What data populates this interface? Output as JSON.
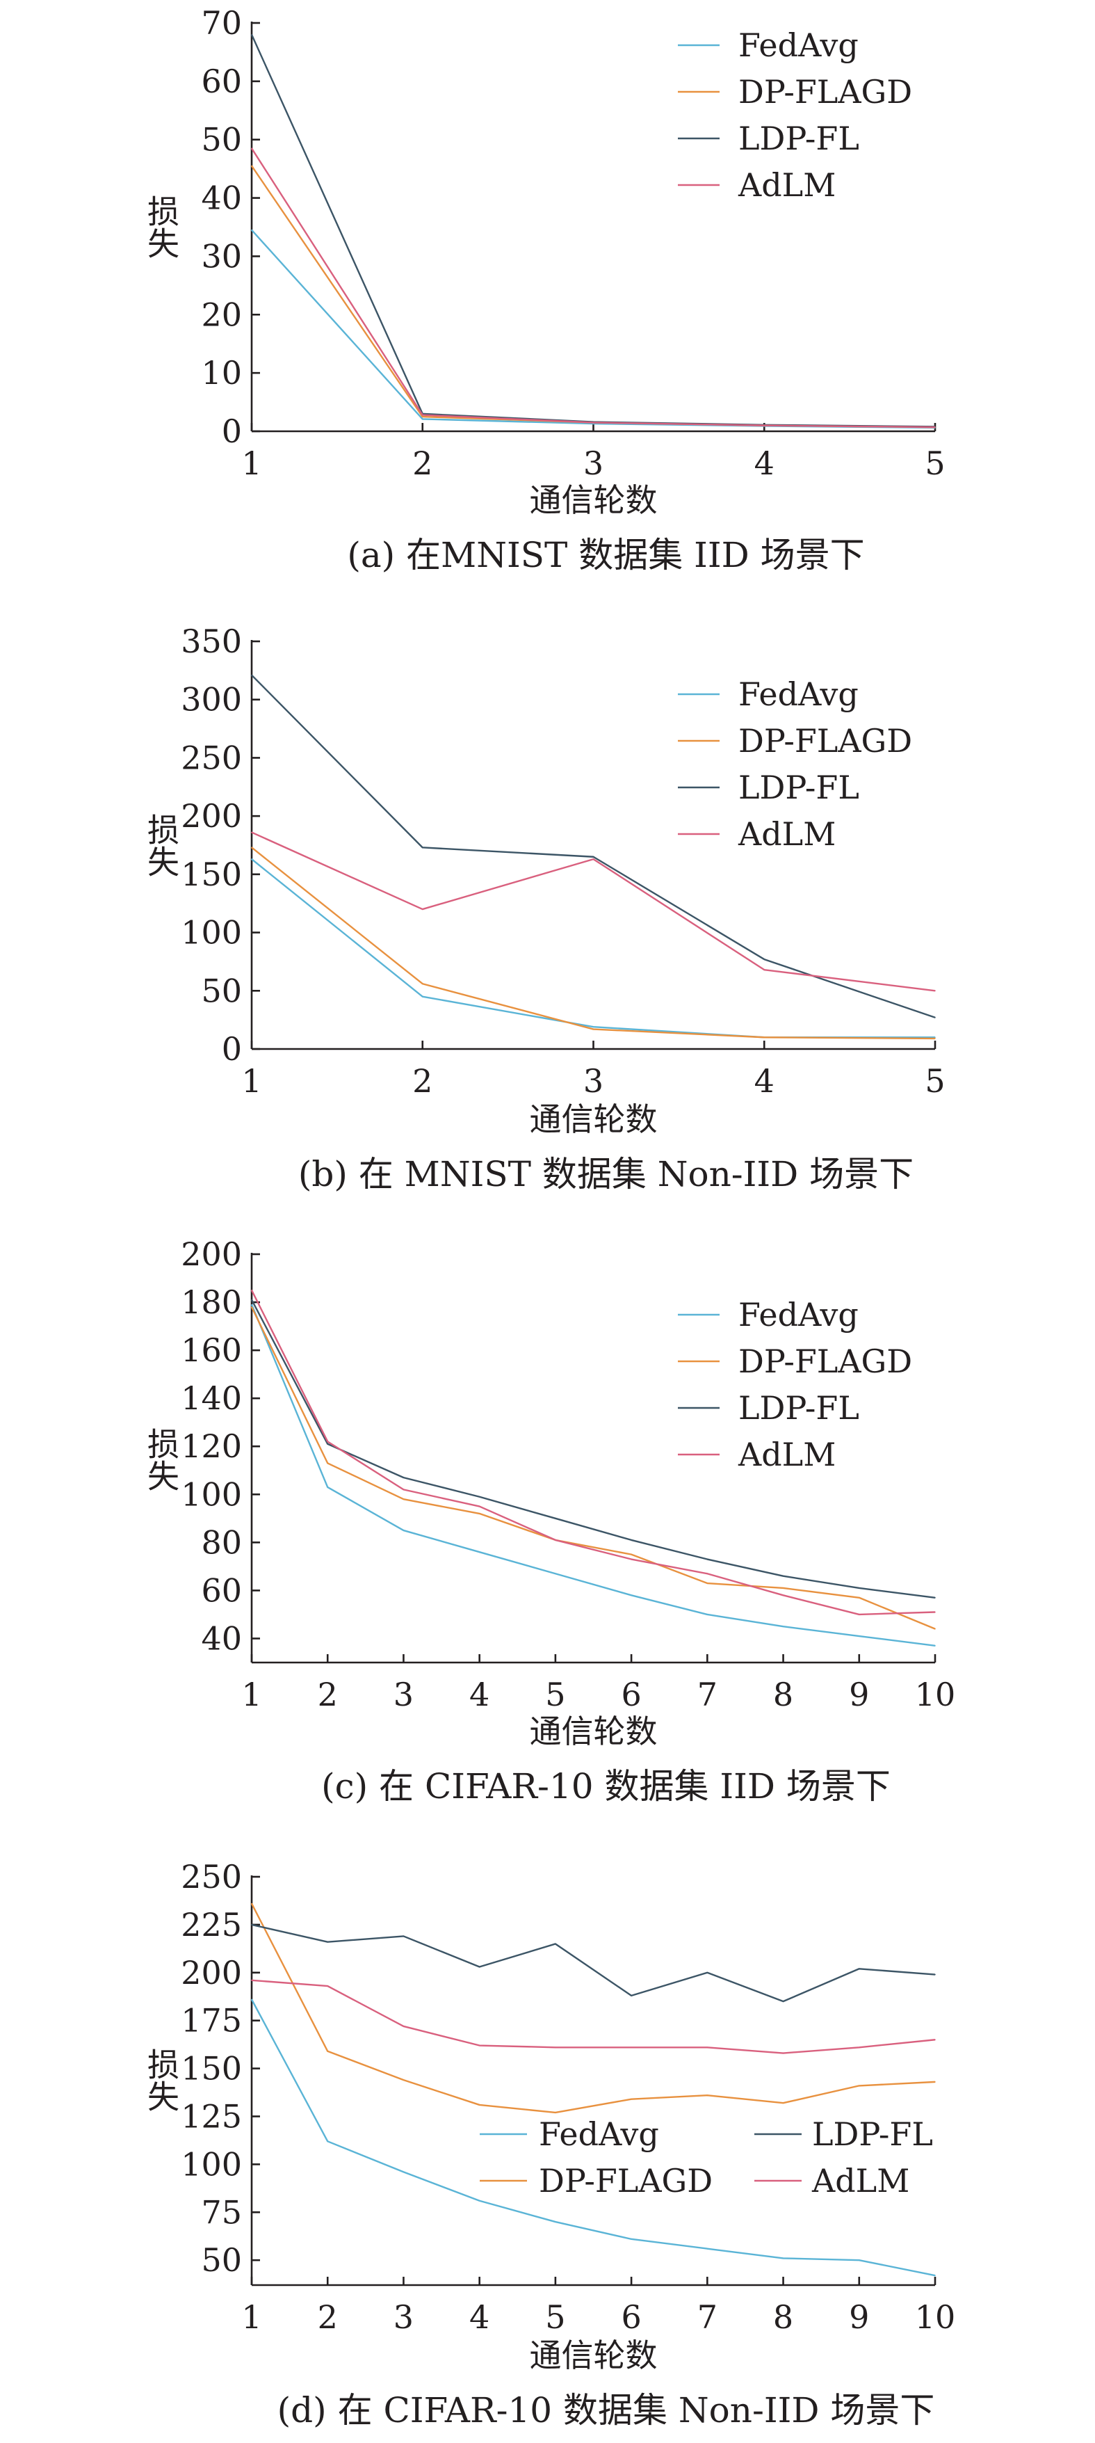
{
  "chart_data": [
    {
      "type": "line",
      "caption": "(a) 在MNIST 数据集 IID 场景下",
      "xlabel": "通信轮数",
      "ylabel": "损失",
      "x": [
        1,
        2,
        3,
        4,
        5
      ],
      "xlim": [
        1,
        5
      ],
      "ylim": [
        0,
        70
      ],
      "yticks": [
        0,
        10,
        20,
        30,
        40,
        50,
        60,
        70
      ],
      "legend_position": "top-right",
      "legend_layout": "single-column",
      "series": [
        {
          "name": "FedAvg",
          "color": "#5ab4d6",
          "values": [
            34.5,
            2.1,
            1.3,
            0.9,
            0.6
          ]
        },
        {
          "name": "DP-FLAGD",
          "color": "#e8913f",
          "values": [
            45.5,
            2.5,
            1.5,
            1.0,
            0.7
          ]
        },
        {
          "name": "LDP-FL",
          "color": "#3c5566",
          "values": [
            68,
            3.0,
            1.6,
            1.1,
            0.8
          ]
        },
        {
          "name": "AdLM",
          "color": "#d9607e",
          "values": [
            48.5,
            2.8,
            1.5,
            1.0,
            0.7
          ]
        }
      ]
    },
    {
      "type": "line",
      "caption": "(b)  在 MNIST 数据集 Non-IID 场景下",
      "xlabel": "通信轮数",
      "ylabel": "损失",
      "x": [
        1,
        2,
        3,
        4,
        5
      ],
      "xlim": [
        1,
        5
      ],
      "ylim": [
        0,
        350
      ],
      "yticks": [
        0,
        50,
        100,
        150,
        200,
        250,
        300,
        350
      ],
      "legend_position": "top-right",
      "legend_layout": "single-column",
      "series": [
        {
          "name": "FedAvg",
          "color": "#5ab4d6",
          "values": [
            163,
            45,
            19,
            10,
            10
          ]
        },
        {
          "name": "DP-FLAGD",
          "color": "#e8913f",
          "values": [
            173,
            56,
            17,
            10,
            9
          ]
        },
        {
          "name": "LDP-FL",
          "color": "#3c5566",
          "values": [
            321,
            173,
            165,
            77,
            27
          ]
        },
        {
          "name": "AdLM",
          "color": "#d9607e",
          "values": [
            186,
            120,
            163,
            68,
            50
          ]
        }
      ]
    },
    {
      "type": "line",
      "caption": "(c) 在 CIFAR-10 数据集 IID 场景下",
      "xlabel": "通信轮数",
      "ylabel": "损失",
      "x": [
        1,
        2,
        3,
        4,
        5,
        6,
        7,
        8,
        9,
        10
      ],
      "xlim": [
        1,
        10
      ],
      "ylim": [
        30,
        200
      ],
      "yticks": [
        40,
        60,
        80,
        100,
        120,
        140,
        160,
        180,
        200
      ],
      "legend_position": "top-right",
      "legend_layout": "single-column",
      "series": [
        {
          "name": "FedAvg",
          "color": "#5ab4d6",
          "values": [
            179,
            103,
            85,
            76,
            67,
            58,
            50,
            45,
            41,
            37
          ]
        },
        {
          "name": "DP-FLAGD",
          "color": "#e8913f",
          "values": [
            178,
            113,
            98,
            92,
            81,
            75,
            63,
            61,
            57,
            44
          ]
        },
        {
          "name": "LDP-FL",
          "color": "#3c5566",
          "values": [
            181,
            121,
            107,
            99,
            90,
            81,
            73,
            66,
            61,
            57
          ]
        },
        {
          "name": "AdLM",
          "color": "#d9607e",
          "values": [
            185,
            122,
            102,
            95,
            81,
            73,
            67,
            58,
            50,
            51
          ]
        }
      ]
    },
    {
      "type": "line",
      "caption": "(d) 在 CIFAR-10 数据集 Non-IID 场景下",
      "xlabel": "通信轮数",
      "ylabel": "损失",
      "x": [
        1,
        2,
        3,
        4,
        5,
        6,
        7,
        8,
        9,
        10
      ],
      "xlim": [
        1,
        10
      ],
      "ylim": [
        37,
        250
      ],
      "yticks": [
        50,
        75,
        100,
        125,
        150,
        175,
        200,
        225,
        250
      ],
      "legend_position": "center-right",
      "legend_layout": "two-columns",
      "series": [
        {
          "name": "FedAvg",
          "color": "#5ab4d6",
          "values": [
            186,
            112,
            96,
            81,
            70,
            61,
            56,
            51,
            50,
            42
          ]
        },
        {
          "name": "DP-FLAGD",
          "color": "#e8913f",
          "values": [
            236,
            159,
            144,
            131,
            127,
            134,
            136,
            132,
            141,
            143
          ]
        },
        {
          "name": "LDP-FL",
          "color": "#3c5566",
          "values": [
            225,
            216,
            219,
            203,
            215,
            188,
            200,
            185,
            202,
            199
          ]
        },
        {
          "name": "AdLM",
          "color": "#d9607e",
          "values": [
            196,
            193,
            172,
            162,
            161,
            161,
            161,
            158,
            161,
            165
          ]
        }
      ]
    }
  ]
}
